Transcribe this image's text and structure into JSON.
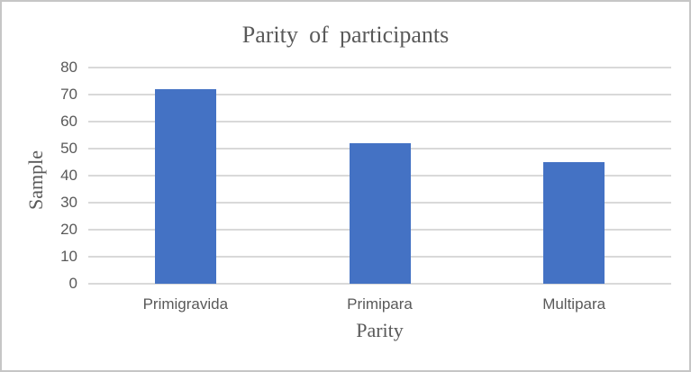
{
  "figure": {
    "background_color": "#FFFFFF",
    "border_color": "#C6C6C6",
    "text_color": "#595959"
  },
  "chart_data": {
    "type": "bar",
    "title": "Parity of participants",
    "categories": [
      "Primigravida",
      "Primipara",
      "Multipara"
    ],
    "values": [
      72,
      52,
      45
    ],
    "xlabel": "Parity",
    "ylabel": "Sample",
    "ylim": [
      0,
      80
    ],
    "yticks": [
      0,
      10,
      20,
      30,
      40,
      50,
      60,
      70,
      80
    ],
    "grid": true,
    "legend_position": "none",
    "bar_color": "#4472C4",
    "gridline_color": "#D9D9D9",
    "axis_line_color": "#D9D9D9"
  }
}
